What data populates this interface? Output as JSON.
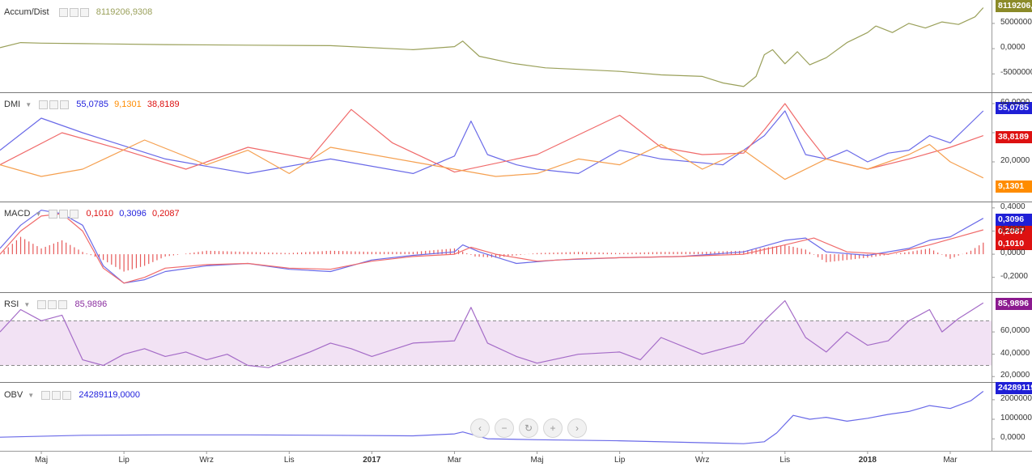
{
  "chart_data": [
    {
      "type": "line",
      "name": "Accum/Dist",
      "value_text": "8119206,9308",
      "badge_text": "8119206,",
      "color": "#9aa05a",
      "ylim": [
        -8000000,
        9000000
      ],
      "ytick_values": [
        5000000,
        0,
        -5000000
      ],
      "ytick_labels": [
        "5000000,",
        "0,0000",
        "-5000000,"
      ],
      "series": [
        {
          "x": [
            0,
            5,
            10,
            20,
            40,
            60,
            80,
            100,
            110,
            112,
            116,
            124,
            132,
            140,
            150,
            160,
            170,
            175,
            180,
            183,
            185,
            187,
            190,
            193,
            196,
            200,
            205,
            210,
            212
          ],
          "values": [
            200000,
            1200000,
            1100000,
            1000000,
            800000,
            700000,
            600000,
            -200000,
            400000,
            1500000,
            -1500000,
            -2900000,
            -3800000,
            -4100000,
            -4500000,
            -5200000,
            -5500000,
            -6800000,
            -7500000,
            -5500000,
            -1200000,
            -200000,
            -3000000,
            -600000,
            -3200000,
            -1800000,
            1200000,
            3200000,
            4500000
          ]
        },
        {
          "x": [
            212,
            216,
            220,
            224,
            228,
            232,
            236,
            238
          ],
          "values": [
            4500000,
            3200000,
            5000000,
            4100000,
            5300000,
            4800000,
            6300000,
            8119206.93
          ]
        }
      ]
    },
    {
      "type": "line",
      "name": "DMI",
      "values_text": [
        "55,0785",
        "9,1301",
        "38,8189"
      ],
      "value_colors": [
        "#2222dd",
        "#ff8c00",
        "#dd1111"
      ],
      "badge_texts": [
        "55,0785",
        "38,8189",
        "9,1301"
      ],
      "ylim": [
        -5,
        65
      ],
      "ytick_values": [
        60,
        40,
        20
      ],
      "ytick_labels": [
        "60,0000",
        "",
        "20,0000"
      ],
      "series": [
        {
          "color": "#6a6ae8",
          "x": [
            0,
            10,
            20,
            40,
            60,
            80,
            100,
            110,
            114,
            118,
            125,
            130,
            140,
            150,
            160,
            175,
            185,
            190,
            195,
            200,
            205,
            210,
            215,
            220,
            225,
            230,
            238
          ],
          "values": [
            28,
            50,
            40,
            22,
            12,
            22,
            12,
            24,
            48,
            25,
            18,
            15,
            12,
            28,
            22,
            18,
            38,
            55,
            25,
            22,
            28,
            20,
            26,
            28,
            38,
            33,
            55
          ]
        },
        {
          "color": "#f06a6a",
          "x": [
            0,
            15,
            30,
            45,
            60,
            75,
            85,
            95,
            110,
            130,
            150,
            160,
            170,
            180,
            185,
            190,
            195,
            200,
            210,
            220,
            230,
            238
          ],
          "values": [
            18,
            40,
            28,
            15,
            30,
            22,
            56,
            33,
            13,
            25,
            52,
            30,
            25,
            26,
            42,
            60,
            40,
            22,
            15,
            22,
            30,
            38
          ]
        },
        {
          "color": "#f5a050",
          "x": [
            0,
            10,
            20,
            35,
            50,
            60,
            70,
            80,
            100,
            120,
            130,
            140,
            150,
            160,
            170,
            180,
            190,
            200,
            210,
            220,
            225,
            230,
            238
          ],
          "values": [
            18,
            10,
            15,
            35,
            18,
            28,
            12,
            30,
            20,
            10,
            12,
            22,
            18,
            32,
            15,
            28,
            8,
            22,
            15,
            25,
            32,
            20,
            9
          ]
        }
      ]
    },
    {
      "type": "bar_line",
      "name": "MACD",
      "values_text": [
        "0,1010",
        "0,3096",
        "0,2087"
      ],
      "value_colors": [
        "#dd1111",
        "#2222dd",
        "#dd1111"
      ],
      "badge_texts": [
        "0,3096",
        "0,2087",
        "0,1010"
      ],
      "ylim": [
        -0.3,
        0.42
      ],
      "ytick_values": [
        0.4,
        0.2,
        0,
        -0.2
      ],
      "ytick_labels": [
        "0,4000",
        "0,2000",
        "0,0000",
        "-0,2000"
      ],
      "histogram": {
        "color": "#e03030",
        "x": [
          0,
          5,
          10,
          15,
          20,
          25,
          30,
          35,
          40,
          50,
          60,
          70,
          80,
          90,
          100,
          110,
          115,
          120,
          130,
          140,
          150,
          160,
          170,
          180,
          190,
          195,
          200,
          210,
          220,
          225,
          230,
          235,
          238
        ],
        "values": [
          0,
          0.15,
          0.05,
          0.12,
          0.02,
          -0.05,
          -0.15,
          -0.1,
          -0.02,
          0.03,
          0.02,
          0.01,
          0.03,
          0.02,
          0.02,
          0.05,
          -0.02,
          -0.03,
          0.01,
          0.02,
          0.01,
          0.02,
          0.02,
          0.03,
          0.08,
          0.04,
          -0.07,
          -0.03,
          0.02,
          0.05,
          -0.04,
          0.03,
          0.1
        ]
      },
      "series": [
        {
          "color": "#6a6ae8",
          "x": [
            0,
            5,
            10,
            15,
            20,
            25,
            30,
            35,
            40,
            50,
            60,
            70,
            80,
            90,
            100,
            110,
            112,
            116,
            125,
            135,
            150,
            165,
            180,
            190,
            195,
            200,
            210,
            220,
            225,
            230,
            238
          ],
          "values": [
            0.05,
            0.25,
            0.38,
            0.35,
            0.25,
            -0.1,
            -0.25,
            -0.22,
            -0.15,
            -0.1,
            -0.08,
            -0.13,
            -0.15,
            -0.05,
            -0.01,
            0.02,
            0.08,
            0.02,
            -0.08,
            -0.05,
            -0.03,
            -0.02,
            0.02,
            0.12,
            0.14,
            0.02,
            -0.01,
            0.05,
            0.12,
            0.15,
            0.31
          ]
        },
        {
          "color": "#f06a6a",
          "x": [
            0,
            5,
            10,
            15,
            20,
            25,
            30,
            35,
            40,
            50,
            60,
            70,
            80,
            90,
            100,
            110,
            114,
            120,
            130,
            140,
            150,
            165,
            180,
            190,
            197,
            205,
            215,
            225,
            232,
            238
          ],
          "values": [
            0,
            0.2,
            0.33,
            0.35,
            0.2,
            -0.12,
            -0.25,
            -0.2,
            -0.12,
            -0.09,
            -0.08,
            -0.12,
            -0.13,
            -0.06,
            -0.02,
            0.0,
            0.06,
            0.0,
            -0.06,
            -0.04,
            -0.03,
            -0.02,
            0.0,
            0.08,
            0.14,
            0.02,
            0.0,
            0.08,
            0.15,
            0.21
          ]
        }
      ]
    },
    {
      "type": "line",
      "name": "RSI",
      "value_text": "85,9896",
      "badge_text": "85,9896",
      "color": "#a46bc7",
      "band": [
        30,
        70
      ],
      "band_color": "#f2e2f4",
      "ylim": [
        18,
        92
      ],
      "ytick_values": [
        60,
        40,
        20
      ],
      "ytick_labels": [
        "60,0000",
        "40,0000",
        "20,0000"
      ],
      "series": [
        {
          "x": [
            0,
            5,
            10,
            15,
            20,
            25,
            30,
            35,
            40,
            45,
            50,
            55,
            60,
            65,
            70,
            75,
            80,
            85,
            90,
            100,
            110,
            114,
            118,
            125,
            130,
            140,
            150,
            155,
            160,
            170,
            180,
            185,
            190,
            195,
            200,
            205,
            210,
            215,
            220,
            225,
            228,
            232,
            238
          ],
          "values": [
            60,
            80,
            70,
            75,
            35,
            30,
            40,
            45,
            38,
            42,
            35,
            40,
            30,
            28,
            35,
            42,
            50,
            45,
            38,
            50,
            52,
            82,
            50,
            38,
            32,
            40,
            42,
            35,
            55,
            40,
            50,
            70,
            88,
            55,
            42,
            60,
            48,
            52,
            70,
            80,
            60,
            72,
            86
          ]
        }
      ]
    },
    {
      "type": "line",
      "name": "OBV",
      "value_text": "24289119,0000",
      "badge_text": "24289119,",
      "color": "#6a6ae8",
      "ylim": [
        -4500000,
        27000000
      ],
      "ytick_values": [
        20000000,
        10000000,
        0
      ],
      "ytick_labels": [
        "20000000,",
        "10000000,",
        "0,0000"
      ],
      "series": [
        {
          "x": [
            0,
            20,
            40,
            60,
            80,
            100,
            110,
            112,
            118,
            130,
            150,
            170,
            180,
            185,
            188,
            192,
            196,
            200,
            205,
            210,
            215,
            220,
            225,
            230,
            235,
            238
          ],
          "values": [
            800000,
            1800000,
            2000000,
            2000000,
            1800000,
            1500000,
            2500000,
            3500000,
            0,
            -500000,
            -1000000,
            -2000000,
            -2500000,
            -1500000,
            3000000,
            12000000,
            10000000,
            11000000,
            9000000,
            10500000,
            12500000,
            14000000,
            17000000,
            15500000,
            19500000,
            24289119
          ]
        }
      ]
    }
  ],
  "x_axis": {
    "range": [
      0,
      240
    ],
    "ticks": [
      {
        "label": "Maj",
        "x": 10,
        "bold": false
      },
      {
        "label": "Lip",
        "x": 30,
        "bold": false
      },
      {
        "label": "Wrz",
        "x": 50,
        "bold": false
      },
      {
        "label": "Lis",
        "x": 70,
        "bold": false
      },
      {
        "label": "2017",
        "x": 90,
        "bold": true
      },
      {
        "label": "Mar",
        "x": 110,
        "bold": false
      },
      {
        "label": "Maj",
        "x": 130,
        "bold": false
      },
      {
        "label": "Lip",
        "x": 150,
        "bold": false
      },
      {
        "label": "Wrz",
        "x": 170,
        "bold": false
      },
      {
        "label": "Lis",
        "x": 190,
        "bold": false
      },
      {
        "label": "2018",
        "x": 210,
        "bold": true
      },
      {
        "label": "Mar",
        "x": 230,
        "bold": false
      }
    ]
  },
  "navigation": {
    "buttons": [
      {
        "name": "scroll-left-button",
        "glyph": "‹"
      },
      {
        "name": "zoom-out-button",
        "glyph": "−"
      },
      {
        "name": "reset-button",
        "glyph": "↻"
      },
      {
        "name": "zoom-in-button",
        "glyph": "+"
      },
      {
        "name": "scroll-right-button",
        "glyph": "›"
      }
    ]
  }
}
